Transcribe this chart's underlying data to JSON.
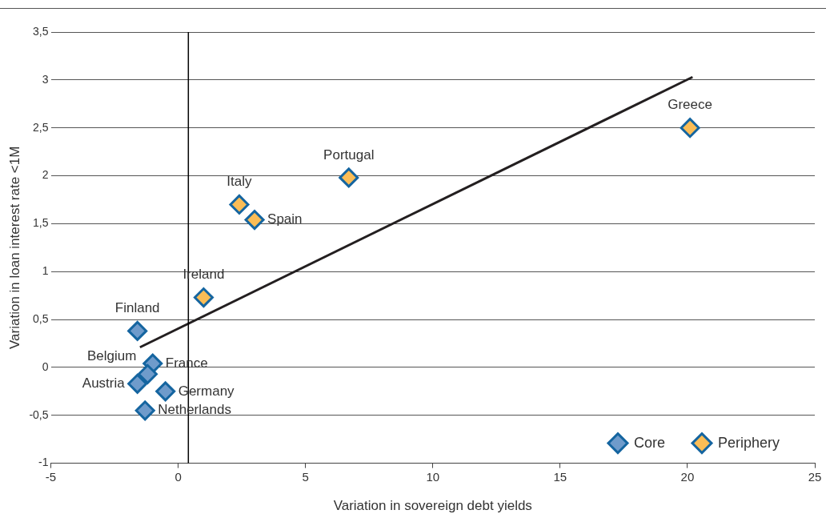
{
  "chart_data": {
    "type": "scatter",
    "xlabel": "Variation in sovereign debt yields",
    "ylabel": "Variation in loan interest rate <1M",
    "xlim": [
      -5,
      25
    ],
    "xticks": [
      -5,
      0,
      5,
      10,
      15,
      20,
      25
    ],
    "ylim": [
      -1,
      3.5
    ],
    "yticks": [
      {
        "value": -1,
        "label": "-1"
      },
      {
        "value": -0.5,
        "label": "-0,5"
      },
      {
        "value": 0,
        "label": "0"
      },
      {
        "value": 0.5,
        "label": "0,5"
      },
      {
        "value": 1,
        "label": "1"
      },
      {
        "value": 1.5,
        "label": "1,5"
      },
      {
        "value": 2,
        "label": "2"
      },
      {
        "value": 2.5,
        "label": "2,5"
      },
      {
        "value": 3,
        "label": "3"
      },
      {
        "value": 3.5,
        "label": "3,5"
      }
    ],
    "grid": "y",
    "legend": "bottom right",
    "marker": "diamond",
    "ref_lines": [
      {
        "axis": "x",
        "value": 0.4,
        "color": "#000000"
      }
    ],
    "series": [
      {
        "name": "Core",
        "color": "#6f9bcb",
        "x": [
          -1.6,
          -1.0,
          -1.2,
          -1.6,
          -0.5,
          -1.3
        ],
        "values": [
          0.38,
          0.04,
          -0.07,
          -0.17,
          -0.25,
          -0.45
        ]
      },
      {
        "name": "Periphery",
        "color": "#fbbd56",
        "x": [
          20.1,
          6.7,
          2.4,
          3.0,
          1.0
        ],
        "values": [
          2.5,
          1.98,
          1.7,
          1.54,
          0.73
        ]
      },
      {
        "type": "line",
        "color": "#231f20",
        "marker": "none",
        "x": [
          -1.5,
          20.2
        ],
        "values": [
          0.21,
          3.03
        ]
      }
    ],
    "annotations": [
      {
        "text": "Greece",
        "x": 20.1,
        "y": 2.5
      },
      {
        "text": "Portugal",
        "x": 6.7,
        "y": 1.98
      },
      {
        "text": "Italy",
        "x": 2.4,
        "y": 1.7
      },
      {
        "text": "Spain",
        "x": 3.0,
        "y": 1.54
      },
      {
        "text": "Ireland",
        "x": 1.0,
        "y": 0.73
      },
      {
        "text": "Finland",
        "x": -1.6,
        "y": 0.38
      },
      {
        "text": "France",
        "x": -1.0,
        "y": 0.04
      },
      {
        "text": "Belgium",
        "x": -1.2,
        "y": -0.07
      },
      {
        "text": "Austria",
        "x": -1.6,
        "y": -0.17
      },
      {
        "text": "Germany",
        "x": -0.5,
        "y": -0.25
      },
      {
        "text": "Netherlands",
        "x": -1.3,
        "y": -0.45
      }
    ]
  }
}
